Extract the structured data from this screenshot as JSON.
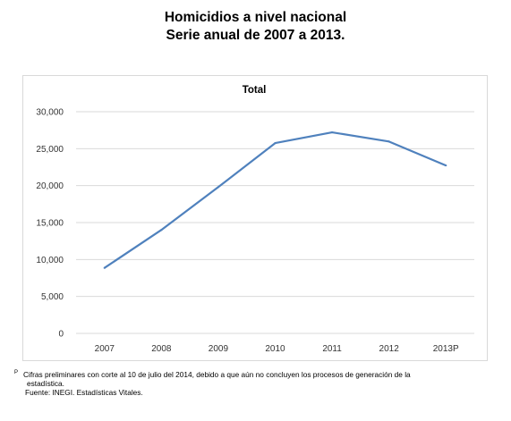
{
  "header": {
    "title_line1": "Homicidios a nivel nacional",
    "title_line2": "Serie anual de 2007 a 2013."
  },
  "chart_data": {
    "type": "line",
    "title": "Total",
    "xlabel": "",
    "ylabel": "",
    "categories": [
      "2007",
      "2008",
      "2009",
      "2010",
      "2011",
      "2012",
      "2013P"
    ],
    "series": [
      {
        "values": [
          8867,
          14006,
          19803,
          25757,
          27213,
          25967,
          22732
        ]
      }
    ],
    "ylim": [
      0,
      30000
    ],
    "yticks": [
      "0",
      "5,000",
      "10,000",
      "15,000",
      "20,000",
      "25,000",
      "30,000"
    ],
    "ytick_values": [
      0,
      5000,
      10000,
      15000,
      20000,
      25000,
      30000
    ],
    "grid": true,
    "legend": "none",
    "line_color": "#4f81bd",
    "grid_color": "#d9d9d9"
  },
  "footnotes": {
    "p_marker": "P",
    "p_text": "Cifras preliminares con corte al 10 de julio del 2014, debido a que aún no concluyen los procesos de generación de la",
    "p_text_cont": "estadística.",
    "source": "Fuente: INEGI. Estadísticas Vitales."
  }
}
